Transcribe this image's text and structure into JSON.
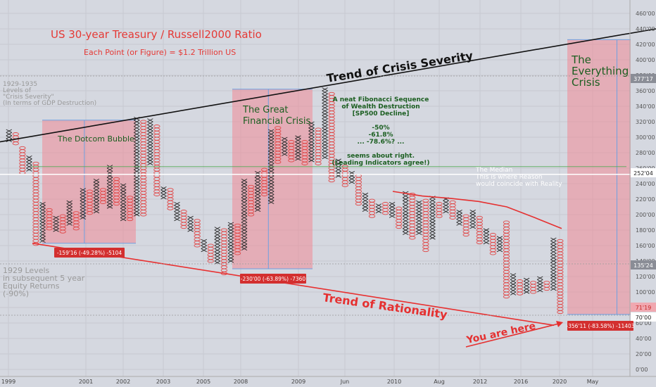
{
  "chart_data": {
    "type": "point-and-figure",
    "title": "US 30-year Treasury / Russell2000 Ratio",
    "subtitle": "Each Point (or Figure) = $1.2 Trillion US",
    "y_ticks": [
      "460'00",
      "440'00",
      "420'00",
      "400'00",
      "380'00",
      "360'00",
      "340'00",
      "320'00",
      "300'00",
      "280'00",
      "260'00",
      "240'00",
      "220'00",
      "200'00",
      "180'00",
      "160'00",
      "140'00",
      "120'00",
      "100'00",
      "80'00",
      "60'00",
      "40'00",
      "20'00",
      "0'00"
    ],
    "x_ticks": [
      "1999",
      "2001",
      "2002",
      "2003",
      "2005",
      "2008",
      "2009",
      "Jun",
      "2010",
      "Aug",
      "2012",
      "2016",
      "2020",
      "May"
    ],
    "price_labels": [
      "377'17",
      "252'04",
      "135'24",
      "71'19",
      "70'00"
    ],
    "ylim": [
      0,
      470
    ],
    "columns": [
      {
        "t": "X",
        "lo": 296,
        "hi": 310
      },
      {
        "t": "O",
        "lo": 292,
        "hi": 306
      },
      {
        "t": "O",
        "lo": 254,
        "hi": 288
      },
      {
        "t": "X",
        "lo": 258,
        "hi": 276
      },
      {
        "t": "O",
        "lo": 162,
        "hi": 268
      },
      {
        "t": "X",
        "lo": 166,
        "hi": 216
      },
      {
        "t": "O",
        "lo": 182,
        "hi": 206
      },
      {
        "t": "X",
        "lo": 180,
        "hi": 196
      },
      {
        "t": "O",
        "lo": 178,
        "hi": 200
      },
      {
        "t": "X",
        "lo": 188,
        "hi": 218
      },
      {
        "t": "O",
        "lo": 182,
        "hi": 204
      },
      {
        "t": "X",
        "lo": 196,
        "hi": 234
      },
      {
        "t": "O",
        "lo": 202,
        "hi": 230
      },
      {
        "t": "X",
        "lo": 204,
        "hi": 244
      },
      {
        "t": "O",
        "lo": 216,
        "hi": 232
      },
      {
        "t": "X",
        "lo": 210,
        "hi": 262
      },
      {
        "t": "O",
        "lo": 214,
        "hi": 248
      },
      {
        "t": "X",
        "lo": 194,
        "hi": 238
      },
      {
        "t": "O",
        "lo": 194,
        "hi": 224
      },
      {
        "t": "X",
        "lo": 200,
        "hi": 326
      },
      {
        "t": "O",
        "lo": 200,
        "hi": 322
      },
      {
        "t": "X",
        "lo": 266,
        "hi": 322
      },
      {
        "t": "O",
        "lo": 226,
        "hi": 316
      },
      {
        "t": "X",
        "lo": 222,
        "hi": 236
      },
      {
        "t": "O",
        "lo": 208,
        "hi": 232
      },
      {
        "t": "X",
        "lo": 194,
        "hi": 214
      },
      {
        "t": "O",
        "lo": 184,
        "hi": 206
      },
      {
        "t": "X",
        "lo": 180,
        "hi": 196
      },
      {
        "t": "O",
        "lo": 160,
        "hi": 192
      },
      {
        "t": "X",
        "lo": 154,
        "hi": 168
      },
      {
        "t": "O",
        "lo": 140,
        "hi": 162
      },
      {
        "t": "X",
        "lo": 138,
        "hi": 184
      },
      {
        "t": "O",
        "lo": 124,
        "hi": 180
      },
      {
        "t": "X",
        "lo": 140,
        "hi": 190
      },
      {
        "t": "O",
        "lo": 150,
        "hi": 188
      },
      {
        "t": "X",
        "lo": 156,
        "hi": 246
      },
      {
        "t": "O",
        "lo": 200,
        "hi": 236
      },
      {
        "t": "X",
        "lo": 206,
        "hi": 254
      },
      {
        "t": "O",
        "lo": 226,
        "hi": 258
      },
      {
        "t": "X",
        "lo": 216,
        "hi": 308
      },
      {
        "t": "O",
        "lo": 268,
        "hi": 314
      },
      {
        "t": "X",
        "lo": 278,
        "hi": 300
      },
      {
        "t": "O",
        "lo": 270,
        "hi": 296
      },
      {
        "t": "X",
        "lo": 272,
        "hi": 300
      },
      {
        "t": "O",
        "lo": 266,
        "hi": 294
      },
      {
        "t": "X",
        "lo": 270,
        "hi": 320
      },
      {
        "t": "O",
        "lo": 266,
        "hi": 310
      },
      {
        "t": "X",
        "lo": 274,
        "hi": 364
      },
      {
        "t": "O",
        "lo": 244,
        "hi": 358
      },
      {
        "t": "X",
        "lo": 250,
        "hi": 272
      },
      {
        "t": "O",
        "lo": 238,
        "hi": 262
      },
      {
        "t": "X",
        "lo": 242,
        "hi": 256
      },
      {
        "t": "O",
        "lo": 214,
        "hi": 250
      },
      {
        "t": "X",
        "lo": 206,
        "hi": 228
      },
      {
        "t": "O",
        "lo": 198,
        "hi": 218
      },
      {
        "t": "X",
        "lo": 204,
        "hi": 214
      },
      {
        "t": "O",
        "lo": 202,
        "hi": 216
      },
      {
        "t": "X",
        "lo": 198,
        "hi": 216
      },
      {
        "t": "O",
        "lo": 184,
        "hi": 210
      },
      {
        "t": "X",
        "lo": 176,
        "hi": 228
      },
      {
        "t": "O",
        "lo": 170,
        "hi": 226
      },
      {
        "t": "X",
        "lo": 176,
        "hi": 216
      },
      {
        "t": "O",
        "lo": 154,
        "hi": 220
      },
      {
        "t": "X",
        "lo": 170,
        "hi": 222
      },
      {
        "t": "O",
        "lo": 198,
        "hi": 216
      },
      {
        "t": "X",
        "lo": 204,
        "hi": 222
      },
      {
        "t": "O",
        "lo": 196,
        "hi": 218
      },
      {
        "t": "X",
        "lo": 188,
        "hi": 204
      },
      {
        "t": "O",
        "lo": 174,
        "hi": 198
      },
      {
        "t": "X",
        "lo": 184,
        "hi": 204
      },
      {
        "t": "O",
        "lo": 164,
        "hi": 196
      },
      {
        "t": "X",
        "lo": 164,
        "hi": 180
      },
      {
        "t": "O",
        "lo": 150,
        "hi": 176
      },
      {
        "t": "X",
        "lo": 154,
        "hi": 172
      },
      {
        "t": "O",
        "lo": 94,
        "hi": 192
      },
      {
        "t": "X",
        "lo": 98,
        "hi": 122
      },
      {
        "t": "O",
        "lo": 98,
        "hi": 116
      },
      {
        "t": "X",
        "lo": 100,
        "hi": 116
      },
      {
        "t": "O",
        "lo": 100,
        "hi": 114
      },
      {
        "t": "X",
        "lo": 102,
        "hi": 118
      },
      {
        "t": "O",
        "lo": 104,
        "hi": 114
      },
      {
        "t": "X",
        "lo": 104,
        "hi": 170
      },
      {
        "t": "O",
        "lo": 74,
        "hi": 168
      }
    ],
    "lines": [
      {
        "name": "Trend of Crisis Severity",
        "color": "#111111",
        "points": [
          [
            0,
            294
          ],
          [
            1000,
            440
          ]
        ]
      },
      {
        "name": "Trend of Rationality",
        "color": "#e83030",
        "points": [
          [
            46,
            163
          ],
          [
            787,
            57
          ]
        ]
      },
      {
        "name": "median",
        "color": "#ffffff",
        "points": [
          [
            0,
            252
          ],
          [
            1000,
            252
          ]
        ]
      },
      {
        "name": "fib-level",
        "color": "#55aa55",
        "points": [
          [
            44,
            262
          ],
          [
            890,
            262
          ]
        ]
      }
    ],
    "moving_average": [
      [
        558,
        230
      ],
      [
        600,
        224
      ],
      [
        640,
        221
      ],
      [
        680,
        217
      ],
      [
        720,
        210
      ],
      [
        760,
        196
      ],
      [
        798,
        182
      ]
    ],
    "red_boxes": [
      {
        "x1": 60,
        "x2": 193,
        "top": 322,
        "bottom": 163
      },
      {
        "x1": 330,
        "x2": 444,
        "top": 362,
        "bottom": 130
      },
      {
        "x1": 806,
        "x2": 896,
        "top": 426,
        "bottom": 71
      }
    ],
    "range_labels": [
      "-159'16 (-49.28%) -5104",
      "-230'00 (-63.89%) -7360",
      "-356'11 (-83.58%) -11403"
    ],
    "annotations": {
      "crisis_severity": "Trend of Crisis Severity",
      "rationality": "Trend of Rationality",
      "you_are_here": "You are here",
      "dotcom": "The Dotcom Bubble",
      "gfc_line1": "The Great",
      "gfc_line2": "Financial Crisis",
      "everything_line1": "The",
      "everything_line2": "Everything",
      "everything_line3": "Crisis",
      "fib_lines": [
        "A neat Fibonacci Sequence",
        "of Wealth Destruction",
        "[SP500 Decline]",
        "",
        "-50%",
        "-61.8%",
        "... -78.6%? ...",
        "",
        "seems about right.",
        "(Leading Indicators agree!)"
      ],
      "median_lines": [
        "The Median",
        "This is where Reason",
        "would coincide with Reality"
      ],
      "left1_lines": [
        "1929-1935",
        "Levels of",
        "\"Crisis Severity\"",
        "(In terms of GDP Destruction)"
      ],
      "left2_lines": [
        "1929 Levels",
        "in subsequent 5 year",
        "Equity  Returns",
        "(-90%)"
      ]
    },
    "colors": {
      "background": "#d5d8e0",
      "x_mark": "#2a2a2a",
      "o_mark": "#e04848",
      "box_fill": "#f08a96",
      "box_edge": "#6fa0e0",
      "label_bg": "#d32f2f",
      "title": "#e53935",
      "green_text": "#1b5e20"
    }
  }
}
